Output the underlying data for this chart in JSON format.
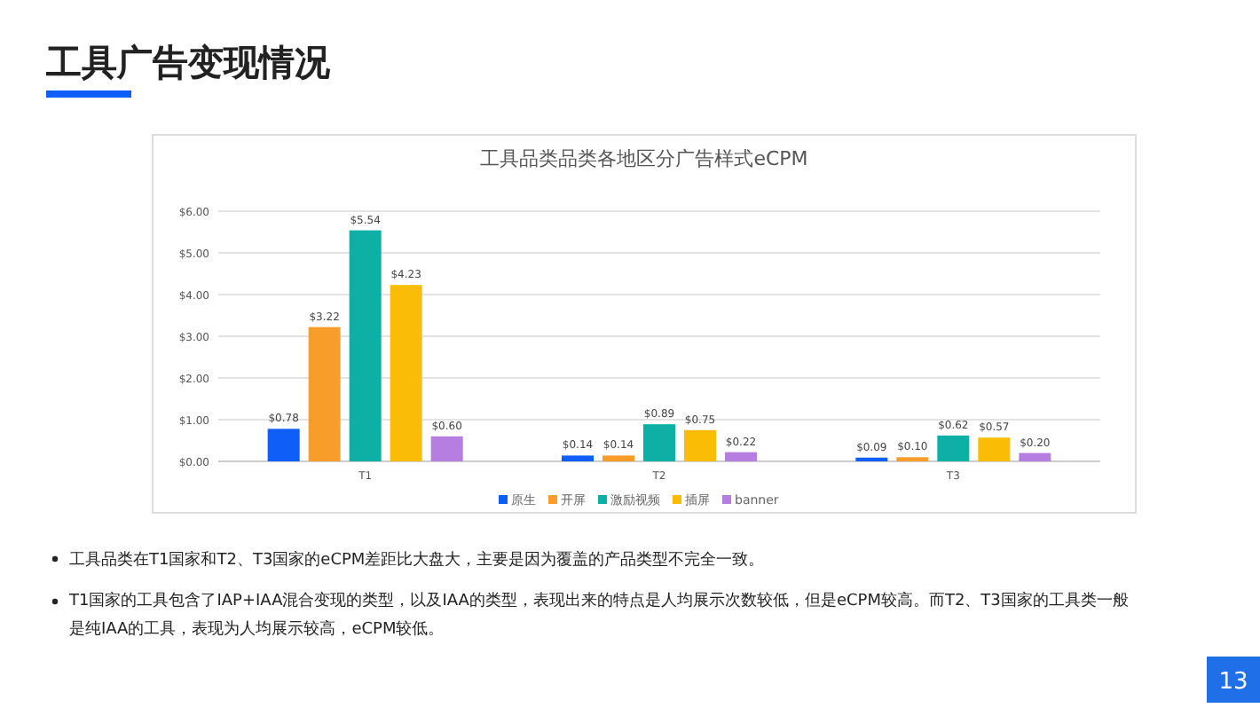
{
  "chart_data": {
    "type": "bar",
    "title": "工具广告变现情况",
    "subtitle": "工具品类品类各地区分广告样式eCPM",
    "categories": [
      "T1",
      "T2",
      "T3"
    ],
    "series": [
      {
        "name": "原生",
        "color": "#0f5ef7",
        "values": [
          0.78,
          0.14,
          0.09
        ],
        "value_labels": [
          "$0.78",
          "$0.14",
          "$0.09"
        ]
      },
      {
        "name": "开屏",
        "color": "#f99d2a",
        "values": [
          3.22,
          0.14,
          0.1
        ],
        "value_labels": [
          "$3.22",
          "$0.14",
          "$0.10"
        ]
      },
      {
        "name": "激励视频",
        "color": "#0eb0a6",
        "values": [
          5.54,
          0.89,
          0.62
        ],
        "value_labels": [
          "$5.54",
          "$0.89",
          "$0.62"
        ]
      },
      {
        "name": "插屏",
        "color": "#fbbc05",
        "values": [
          4.23,
          0.75,
          0.57
        ],
        "value_labels": [
          "$4.23",
          "$0.75",
          "$0.57"
        ]
      },
      {
        "name": "banner",
        "color": "#b57ee0",
        "values": [
          0.6,
          0.22,
          0.2
        ],
        "value_labels": [
          "$0.60",
          "$0.22",
          "$0.20"
        ]
      }
    ],
    "ylim": [
      0,
      6
    ],
    "yticks": [
      {
        "value": 0,
        "label": "$0.00"
      },
      {
        "value": 1,
        "label": "$1.00"
      },
      {
        "value": 2,
        "label": "$2.00"
      },
      {
        "value": 3,
        "label": "$3.00"
      },
      {
        "value": 4,
        "label": "$4.00"
      },
      {
        "value": 5,
        "label": "$5.00"
      },
      {
        "value": 6,
        "label": "$6.00"
      }
    ],
    "grid": "y",
    "legend": "bottom",
    "annotations": [
      "工具品类在T1国家和T2、T3国家的eCPM差距比大盘大，主要是因为覆盖的产品类型不完全一致。",
      "T1国家的工具包含了IAP+IAA混合变现的类型，以及IAA的类型，表现出来的特点是人均展示次数较低，但是eCPM较高。而T2、T3国家的工具类一般是纯IAA的工具，表现为人均展示较高，eCPM较低。",
      "13"
    ]
  }
}
